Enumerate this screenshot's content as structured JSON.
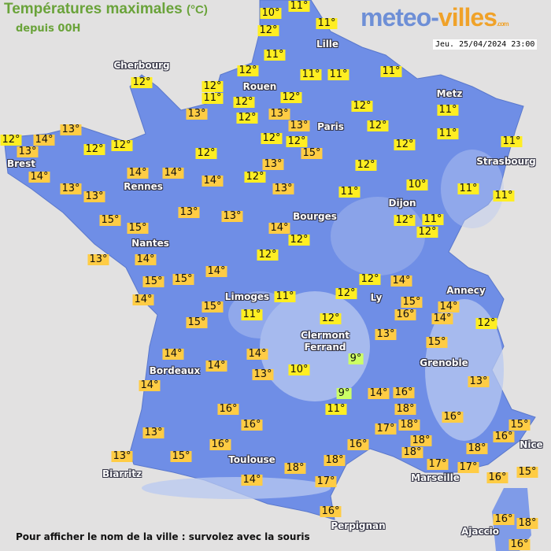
{
  "header": {
    "title": "Températures maximales",
    "unit": "(°C)",
    "subtitle": "depuis 00H",
    "date": "Jeu. 25/04/2024 23:00"
  },
  "logo": {
    "part1": "meteo-",
    "part2": "villes",
    "part3": ".com"
  },
  "colors": {
    "land": "#6f8ee6",
    "highland": "#b9c8f0",
    "sea": "#e2e1e1",
    "cold": "#ccff66",
    "mild": "#ffee22",
    "warm": "#ffcc44"
  },
  "temperatures": [
    "10°",
    "11°",
    "12°",
    "11°",
    "11°",
    "12°",
    "12°",
    "11°",
    "12°",
    "12°",
    "13°",
    "11°",
    "11°",
    "11°",
    "12°",
    "13°",
    "13°",
    "12°",
    "12°",
    "12°",
    "12°",
    "15°",
    "13°",
    "12°",
    "12°",
    "11°",
    "11°",
    "11°",
    "11°",
    "10°",
    "11°",
    "11°",
    "12°",
    "11°",
    "12°",
    "12°",
    "13°",
    "12°",
    "14°",
    "13°",
    "12°",
    "12°",
    "12°",
    "12°",
    "13°",
    "14°",
    "14°",
    "14°",
    "14°",
    "13°",
    "13°",
    "13°",
    "13°",
    "15°",
    "15°",
    "13°",
    "14°",
    "14°",
    "12°",
    "12°",
    "14°",
    "15°",
    "15°",
    "14°",
    "11°",
    "12°",
    "14°",
    "12°",
    "15°",
    "11°",
    "15°",
    "12°",
    "14°",
    "14°",
    "14°",
    "16°",
    "16°",
    "16°",
    "13°",
    "13°",
    "15°",
    "14°",
    "14°",
    "13°",
    "10°",
    "15°",
    "16°",
    "14°",
    "14°",
    "12°",
    "13°",
    "9°",
    "15°",
    "13°",
    "9°",
    "11°",
    "14°",
    "16°",
    "18°",
    "17°",
    "18°",
    "16°",
    "16°",
    "18°",
    "18°",
    "17°",
    "18°",
    "18°",
    "17°",
    "16°",
    "18°",
    "17°",
    "16°",
    "15°",
    "16°",
    "15°",
    "16°",
    "18°",
    "16°"
  ],
  "cities": [
    "Cherbourg",
    "Rouen",
    "Lille",
    "Paris",
    "Metz",
    "Strasbourg",
    "Brest",
    "Rennes",
    "Nantes",
    "Bourges",
    "Dijon",
    "Limoges",
    "Ly",
    "Annecy",
    "Clermont",
    "Ferrand",
    "Grenoble",
    "Bordeaux",
    "Toulouse",
    "Biarritz",
    "Marseille",
    "Nice",
    "Perpignan",
    "Ajaccio"
  ],
  "footer": "Pour afficher le nom de la ville : survolez avec la souris"
}
